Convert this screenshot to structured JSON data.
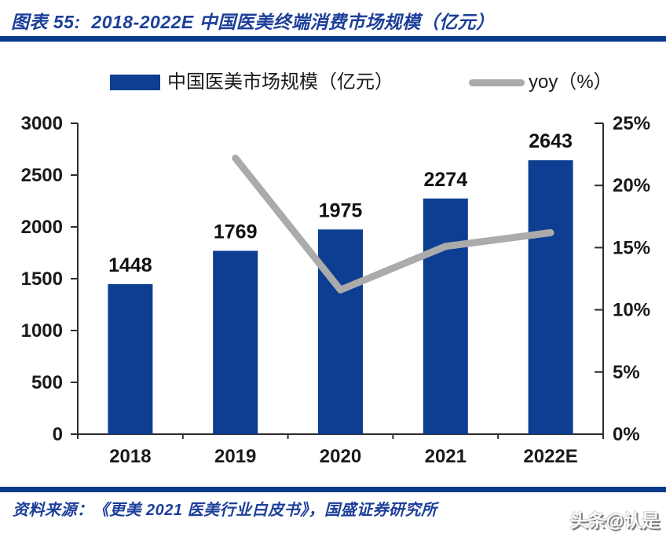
{
  "header": {
    "title": "图表 55:  2018-2022E 中国医美终端消费市场规模（亿元）"
  },
  "legend": {
    "series1": "中国医美市场规模（亿元）",
    "series2": "yoy（%）"
  },
  "footer": {
    "source": "资料来源：《更美 2021 医美行业白皮书》，国盛证券研究所",
    "watermark": "头条@认是"
  },
  "colors": {
    "bar": "#0d3e92",
    "line": "#ababab",
    "axis": "#2e2e2e",
    "tick_label": "#1a1a1a",
    "bar_label": "#111111",
    "accent_blue": "#0a3a8c",
    "title_blue": "#1c3f9a"
  },
  "chart_data": {
    "type": "bar",
    "categories": [
      "2018",
      "2019",
      "2020",
      "2021",
      "2022E"
    ],
    "series": [
      {
        "name": "中国医美市场规模（亿元）",
        "type": "bar",
        "axis": "left",
        "values": [
          1448,
          1769,
          1975,
          2274,
          2643
        ]
      },
      {
        "name": "yoy（%）",
        "type": "line",
        "axis": "right",
        "values": [
          null,
          22.2,
          11.6,
          15.1,
          16.2
        ]
      }
    ],
    "title": "2018-2022E 中国医美终端消费市场规模（亿元）",
    "xlabel": "",
    "ylabel": "",
    "left_axis": {
      "min": 0,
      "max": 3000,
      "step": 500,
      "ticks": [
        "0",
        "500",
        "1000",
        "1500",
        "2000",
        "2500",
        "3000"
      ]
    },
    "right_axis": {
      "min": 0,
      "max": 25,
      "step": 5,
      "ticks": [
        "0%",
        "5%",
        "10%",
        "15%",
        "20%",
        "25%"
      ]
    },
    "grid": false,
    "legend_position": "top",
    "bar_labels": [
      1448,
      1769,
      1975,
      2274,
      2643
    ]
  }
}
